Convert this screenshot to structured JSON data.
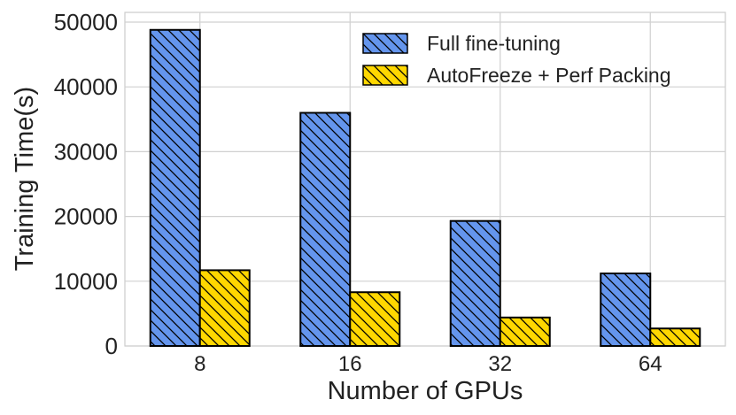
{
  "chart_data": {
    "type": "bar",
    "title": "",
    "xlabel": "Number of GPUs",
    "ylabel": "Training Time(s)",
    "categories": [
      "8",
      "16",
      "32",
      "64"
    ],
    "ylim": [
      0,
      51500
    ],
    "yticks": [
      0,
      10000,
      20000,
      30000,
      40000,
      50000
    ],
    "grid": true,
    "legend_position": "top-right",
    "series": [
      {
        "name": "Full fine-tuning",
        "values": [
          48800,
          36000,
          19300,
          11200
        ],
        "color": "#6495ED",
        "hatch": "diagonal"
      },
      {
        "name": "AutoFreeze + Perf Packing",
        "values": [
          11700,
          8300,
          4400,
          2700
        ],
        "color": "#FFD700",
        "hatch": "diagonal"
      }
    ]
  }
}
